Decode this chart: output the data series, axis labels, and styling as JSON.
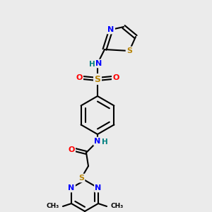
{
  "bg_color": "#ebebeb",
  "bond_color": "#000000",
  "atom_colors": {
    "N": "#0000ff",
    "S": "#b8860b",
    "O": "#ff0000",
    "H": "#008080",
    "C": "#000000"
  }
}
